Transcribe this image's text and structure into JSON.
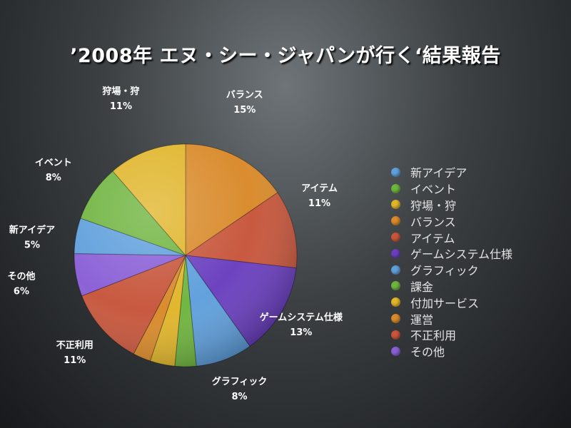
{
  "chart_data": {
    "type": "pie",
    "title": "’2008年 エヌ・シー・ジャパンが行く‘結果報告",
    "slices": [
      {
        "name": "バランス",
        "value": 15,
        "label": "15%",
        "color": "#d98a2a"
      },
      {
        "name": "アイテム",
        "value": 11,
        "label": "11%",
        "color": "#c7563c"
      },
      {
        "name": "ゲームシステム仕様",
        "value": 13,
        "label": "13%",
        "color": "#6a3fbf"
      },
      {
        "name": "グラフィック",
        "value": 8,
        "label": "8%",
        "color": "#5f9fdc"
      },
      {
        "name": "課金",
        "value": 3,
        "label": "",
        "color": "#6fb43f"
      },
      {
        "name": "付加サービス",
        "value": 3.5,
        "label": "",
        "color": "#e0b52a"
      },
      {
        "name": "運営",
        "value": 2.5,
        "label": "",
        "color": "#d98a2a"
      },
      {
        "name": "不正利用",
        "value": 11,
        "label": "11%",
        "color": "#c7563c"
      },
      {
        "name": "その他",
        "value": 6,
        "label": "6%",
        "color": "#8a5fd6"
      },
      {
        "name": "新アイデア",
        "value": 5,
        "label": "5%",
        "color": "#5f9fdc"
      },
      {
        "name": "イベント",
        "value": 8,
        "label": "8%",
        "color": "#6fb43f"
      },
      {
        "name": "狩場・狩",
        "value": 11,
        "label": "11%",
        "color": "#e0b52a"
      }
    ],
    "legend": [
      {
        "label": "新アイデア",
        "color": "#5f9fdc"
      },
      {
        "label": "イベント",
        "color": "#6fb43f"
      },
      {
        "label": "狩場・狩",
        "color": "#e0b52a"
      },
      {
        "label": "バランス",
        "color": "#d98a2a"
      },
      {
        "label": "アイテム",
        "color": "#c7563c"
      },
      {
        "label": "ゲームシステム仕様",
        "color": "#6a3fbf"
      },
      {
        "label": "グラフィック",
        "color": "#5f9fdc"
      },
      {
        "label": "課金",
        "color": "#6fb43f"
      },
      {
        "label": "付加サービス",
        "color": "#e0b52a"
      },
      {
        "label": "運営",
        "color": "#d98a2a"
      },
      {
        "label": "不正利用",
        "color": "#c7563c"
      },
      {
        "label": "その他",
        "color": "#8a5fd6"
      }
    ],
    "legend_position": "right"
  }
}
